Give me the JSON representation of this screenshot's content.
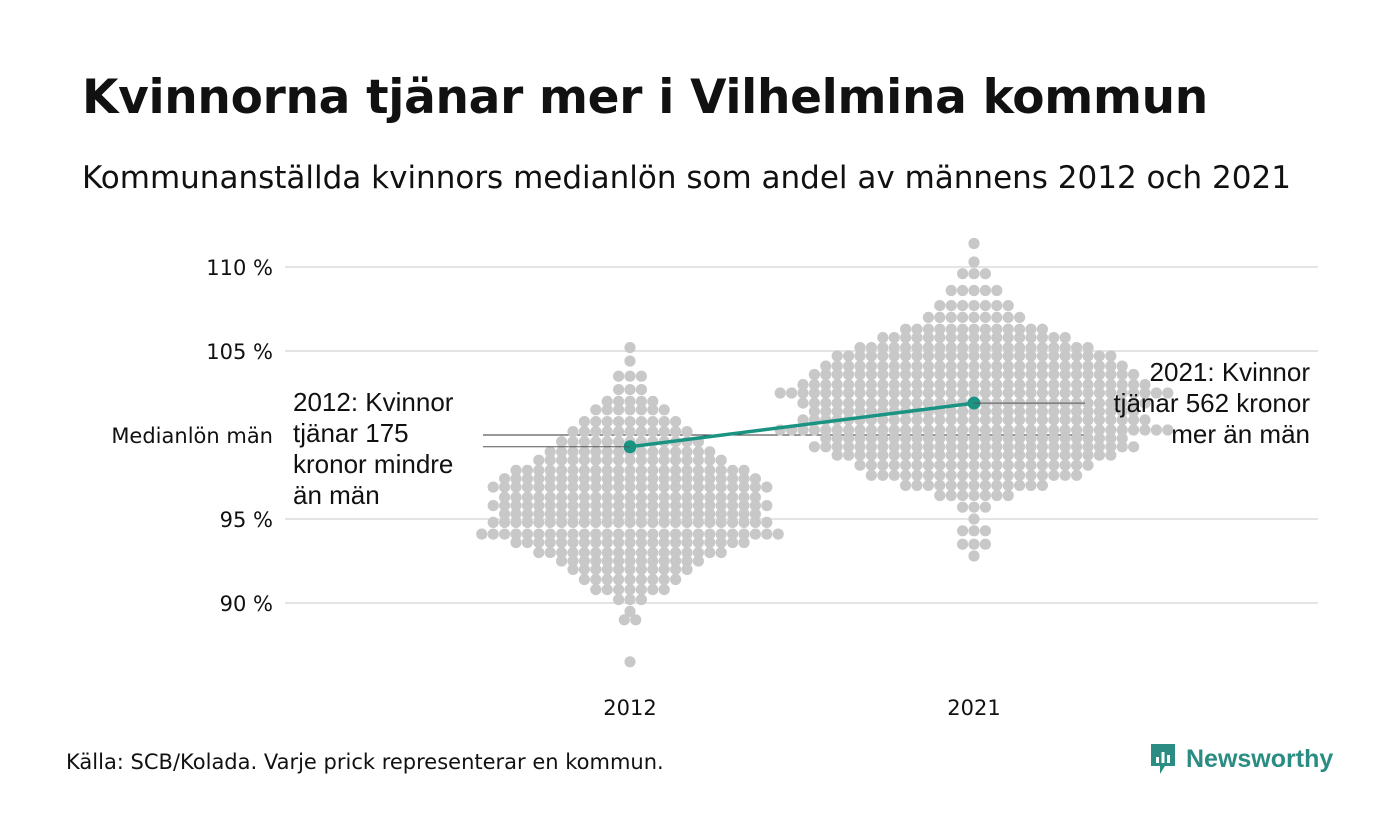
{
  "title": "Kvinnorna tjänar mer i Vilhelmina kommun",
  "subtitle": "Kommunanställda kvinnors medianlön som andel av männens 2012 och 2021",
  "source": "Källa: SCB/Kolada. Varje prick representerar en kommun.",
  "brand": {
    "name": "Newsworthy",
    "icon": "newsworthy-logo-icon",
    "color": "#2a8c82"
  },
  "chart_data": {
    "type": "scatter",
    "subtype": "beeswarm",
    "categories": [
      "2012",
      "2021"
    ],
    "y_ticks": [
      {
        "value": 90,
        "label": "90 %"
      },
      {
        "value": 95,
        "label": "95 %"
      },
      {
        "value": 100,
        "label": "Medianlön män"
      },
      {
        "value": 105,
        "label": "105 %"
      },
      {
        "value": 110,
        "label": "110 %"
      }
    ],
    "ylim": [
      86,
      111.5
    ],
    "grid": true,
    "dot_color": "#c8c8c8",
    "highlight_color": "#1a9383",
    "distributions": [
      {
        "category": "2012",
        "min": 86.5,
        "max": 105.2,
        "bins": [
          {
            "y": 105.2,
            "n": 1
          },
          {
            "y": 104.4,
            "n": 1
          },
          {
            "y": 103.5,
            "n": 3
          },
          {
            "y": 102.7,
            "n": 3
          },
          {
            "y": 102.0,
            "n": 5
          },
          {
            "y": 101.5,
            "n": 7
          },
          {
            "y": 100.8,
            "n": 9
          },
          {
            "y": 100.2,
            "n": 11
          },
          {
            "y": 99.6,
            "n": 13
          },
          {
            "y": 99.0,
            "n": 15
          },
          {
            "y": 98.5,
            "n": 17
          },
          {
            "y": 97.9,
            "n": 21
          },
          {
            "y": 97.4,
            "n": 23
          },
          {
            "y": 96.9,
            "n": 25
          },
          {
            "y": 96.3,
            "n": 23
          },
          {
            "y": 95.8,
            "n": 25
          },
          {
            "y": 95.3,
            "n": 23
          },
          {
            "y": 94.8,
            "n": 25
          },
          {
            "y": 94.1,
            "n": 27
          },
          {
            "y": 93.6,
            "n": 21
          },
          {
            "y": 93.0,
            "n": 17
          },
          {
            "y": 92.5,
            "n": 13
          },
          {
            "y": 92.0,
            "n": 11
          },
          {
            "y": 91.4,
            "n": 9
          },
          {
            "y": 90.8,
            "n": 7
          },
          {
            "y": 90.2,
            "n": 3
          },
          {
            "y": 89.5,
            "n": 1
          },
          {
            "y": 89.0,
            "n": 2
          },
          {
            "y": 86.5,
            "n": 1
          }
        ]
      },
      {
        "category": "2021",
        "min": 92.5,
        "max": 111.4,
        "bins": [
          {
            "y": 111.4,
            "n": 1
          },
          {
            "y": 110.3,
            "n": 1
          },
          {
            "y": 109.6,
            "n": 3
          },
          {
            "y": 108.6,
            "n": 5
          },
          {
            "y": 107.7,
            "n": 7
          },
          {
            "y": 107.0,
            "n": 9
          },
          {
            "y": 106.3,
            "n": 13
          },
          {
            "y": 105.8,
            "n": 17
          },
          {
            "y": 105.2,
            "n": 21
          },
          {
            "y": 104.7,
            "n": 25
          },
          {
            "y": 104.1,
            "n": 27
          },
          {
            "y": 103.6,
            "n": 29
          },
          {
            "y": 103.0,
            "n": 31
          },
          {
            "y": 102.5,
            "n": 35
          },
          {
            "y": 101.9,
            "n": 31
          },
          {
            "y": 101.4,
            "n": 29
          },
          {
            "y": 100.9,
            "n": 31
          },
          {
            "y": 100.3,
            "n": 35
          },
          {
            "y": 99.8,
            "n": 27
          },
          {
            "y": 99.3,
            "n": 29
          },
          {
            "y": 98.8,
            "n": 25
          },
          {
            "y": 98.2,
            "n": 21
          },
          {
            "y": 97.6,
            "n": 19
          },
          {
            "y": 97.0,
            "n": 13
          },
          {
            "y": 96.4,
            "n": 7
          },
          {
            "y": 95.7,
            "n": 3
          },
          {
            "y": 95.0,
            "n": 1
          },
          {
            "y": 94.3,
            "n": 3
          },
          {
            "y": 93.5,
            "n": 3
          },
          {
            "y": 92.8,
            "n": 1
          }
        ]
      }
    ],
    "highlight": {
      "name": "Vilhelmina",
      "points": [
        {
          "category": "2012",
          "value": 99.3
        },
        {
          "category": "2021",
          "value": 101.9
        }
      ]
    },
    "annotations": [
      {
        "category": "2012",
        "lines": [
          "2012: Kvinnor",
          "tjänar 175",
          "kronor mindre",
          "än män"
        ]
      },
      {
        "category": "2021",
        "lines": [
          "2021: Kvinnor",
          "tjänar 562 kronor",
          "mer än män"
        ]
      }
    ]
  }
}
